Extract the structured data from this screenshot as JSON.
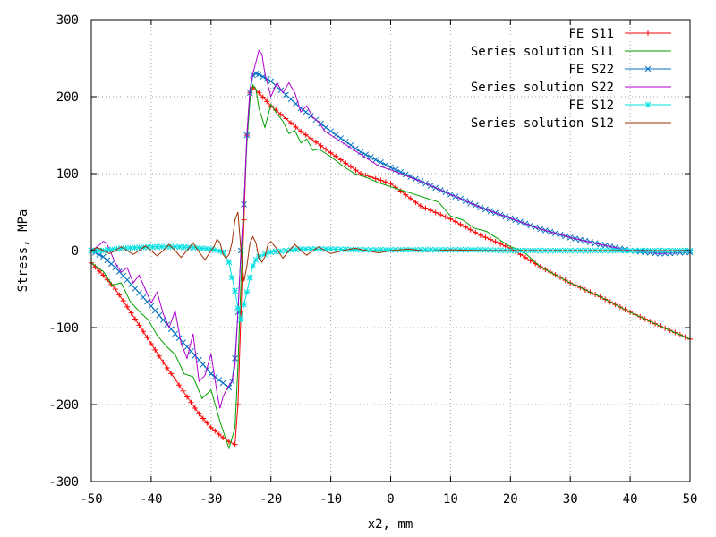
{
  "chart_data": {
    "type": "line",
    "title": "",
    "xlabel": "x2, mm",
    "ylabel": "Stress, MPa",
    "xlim": [
      -50,
      50
    ],
    "ylim": [
      -300,
      300
    ],
    "xticks": [
      -50,
      -40,
      -30,
      -20,
      -10,
      0,
      10,
      20,
      30,
      40,
      50
    ],
    "yticks": [
      -300,
      -200,
      -100,
      0,
      100,
      200,
      300
    ],
    "grid": true,
    "legend_position": "top-right",
    "series": [
      {
        "name": "FE S11",
        "color": "#ff0000",
        "marker": "plus",
        "x": [
          -50,
          -48,
          -46,
          -44,
          -42,
          -40,
          -38,
          -36,
          -34,
          -32,
          -30,
          -28,
          -27,
          -26,
          -25.5,
          -25,
          -24.5,
          -24,
          -23.5,
          -23,
          -22,
          -20,
          -15,
          -10,
          -5,
          0,
          5,
          10,
          15,
          20,
          25,
          30,
          35,
          40,
          45,
          50
        ],
        "y": [
          -16,
          -32,
          -50,
          -73,
          -97,
          -121,
          -145,
          -167,
          -190,
          -212,
          -230,
          -243,
          -248,
          -252,
          -200,
          -80,
          40,
          150,
          205,
          212,
          205,
          188,
          155,
          127,
          100,
          87,
          58,
          41,
          20,
          3,
          -21,
          -42,
          -60,
          -80,
          -98,
          -115
        ]
      },
      {
        "name": "Series solution S11",
        "color": "#00a000",
        "marker": "none",
        "x": [
          -50,
          -48,
          -46.5,
          -45,
          -43.5,
          -42,
          -40.5,
          -39,
          -37.5,
          -36,
          -34.5,
          -33,
          -31.5,
          -30,
          -28.5,
          -27,
          -26,
          -25.5,
          -25,
          -24.5,
          -24,
          -23.5,
          -23,
          -22.5,
          -22,
          -21,
          -20,
          -19,
          -18,
          -17,
          -16,
          -15,
          -14,
          -13,
          -12,
          -10,
          -8,
          -6,
          -4,
          -2,
          0,
          2,
          4,
          6,
          8,
          10,
          12,
          14,
          16,
          18,
          20,
          22,
          25,
          30,
          35,
          40,
          45,
          50
        ],
        "y": [
          -16,
          -27,
          -45,
          -42,
          -66,
          -79,
          -90,
          -110,
          -124,
          -135,
          -160,
          -164,
          -192,
          -181,
          -222,
          -257,
          -230,
          -150,
          -40,
          60,
          140,
          195,
          215,
          210,
          185,
          160,
          190,
          178,
          168,
          152,
          156,
          140,
          145,
          130,
          132,
          122,
          110,
          100,
          95,
          88,
          83,
          78,
          73,
          68,
          63,
          45,
          40,
          29,
          25,
          15,
          5,
          0,
          -21,
          -42,
          -60,
          -80,
          -98,
          -115
        ]
      },
      {
        "name": "FE S22",
        "color": "#0070c0",
        "marker": "cross",
        "x": [
          -50,
          -48,
          -46,
          -44,
          -42,
          -40,
          -38,
          -36,
          -34,
          -32,
          -30,
          -28,
          -27,
          -26.5,
          -26,
          -25.5,
          -25,
          -24.5,
          -24,
          -23.5,
          -23,
          -22.5,
          -22,
          -20,
          -15,
          -10,
          -5,
          0,
          5,
          10,
          15,
          20,
          25,
          30,
          35,
          40,
          45,
          50
        ],
        "y": [
          0,
          -8,
          -22,
          -38,
          -55,
          -72,
          -90,
          -108,
          -125,
          -142,
          -160,
          -172,
          -178,
          -170,
          -140,
          -80,
          0,
          60,
          150,
          205,
          228,
          230,
          229,
          220,
          185,
          155,
          128,
          108,
          90,
          73,
          56,
          42,
          28,
          17,
          8,
          0,
          -4,
          -2
        ]
      },
      {
        "name": "Series solution S22",
        "color": "#b000d0",
        "marker": "none",
        "x": [
          -50,
          -49,
          -48,
          -47.5,
          -47,
          -46,
          -45,
          -44,
          -43,
          -42,
          -41,
          -40,
          -39,
          -38,
          -37,
          -36,
          -35,
          -34,
          -33,
          -32,
          -31,
          -30,
          -29,
          -28.5,
          -28,
          -27.5,
          -27,
          -26.5,
          -26,
          -25.5,
          -25,
          -24.5,
          -24,
          -23.5,
          -23,
          -22.5,
          -22,
          -21.5,
          -21,
          -20,
          -19,
          -18,
          -17,
          -16,
          -15,
          -14,
          -13,
          -12,
          -11,
          -10,
          -8,
          -6,
          -4,
          -2,
          0,
          5,
          10,
          15,
          20,
          25,
          30,
          35,
          40,
          45,
          50
        ],
        "y": [
          0,
          5,
          12,
          10,
          2,
          -16,
          -28,
          -22,
          -42,
          -32,
          -50,
          -68,
          -54,
          -82,
          -100,
          -78,
          -120,
          -140,
          -108,
          -170,
          -162,
          -134,
          -185,
          -205,
          -190,
          -182,
          -175,
          -170,
          -150,
          -80,
          0,
          60,
          150,
          210,
          230,
          245,
          260,
          255,
          230,
          200,
          218,
          205,
          218,
          205,
          180,
          188,
          173,
          167,
          155,
          150,
          140,
          130,
          120,
          110,
          105,
          90,
          73,
          56,
          42,
          28,
          17,
          8,
          0,
          -4,
          -2
        ]
      },
      {
        "name": "FE S12",
        "color": "#00e0e0",
        "marker": "star",
        "x": [
          -50,
          -48,
          -45,
          -42,
          -39,
          -36,
          -33,
          -30,
          -28,
          -27,
          -26.5,
          -26,
          -25.5,
          -25,
          -24.5,
          -24,
          -23.5,
          -23,
          -22.5,
          -22,
          -21,
          -20,
          -15,
          -10,
          -5,
          0,
          5,
          10,
          15,
          20,
          25,
          30,
          35,
          40,
          45,
          50
        ],
        "y": [
          0,
          0,
          3,
          4,
          5,
          5,
          4,
          2,
          -2,
          -15,
          -35,
          -52,
          -75,
          -90,
          -70,
          -54,
          -35,
          -20,
          -12,
          -8,
          -5,
          -2,
          2,
          2,
          1,
          1,
          1,
          1,
          1,
          0,
          0,
          0,
          0,
          0,
          0,
          0
        ]
      },
      {
        "name": "Series solution S12",
        "color": "#a03000",
        "marker": "none",
        "x": [
          -50,
          -49,
          -48,
          -47,
          -46,
          -45,
          -44,
          -43,
          -42,
          -41,
          -40,
          -39,
          -38,
          -37,
          -36,
          -35,
          -34,
          -33,
          -32,
          -31,
          -30,
          -29.5,
          -29,
          -28.5,
          -28,
          -27.5,
          -27,
          -26.5,
          -26,
          -25.5,
          -25,
          -24.5,
          -24,
          -23.5,
          -23,
          -22.5,
          -22,
          -21.5,
          -21,
          -20.5,
          -20,
          -19,
          -18,
          -17,
          -16,
          -15,
          -14,
          -13,
          -12,
          -11,
          -10,
          -8,
          -6,
          -4,
          -2,
          0,
          3,
          6,
          10,
          15,
          20,
          30,
          40,
          50
        ],
        "y": [
          0,
          4,
          0,
          -4,
          0,
          5,
          0,
          -5,
          0,
          6,
          0,
          -7,
          0,
          8,
          0,
          -9,
          0,
          10,
          -2,
          -12,
          0,
          5,
          15,
          10,
          -5,
          -10,
          -5,
          10,
          40,
          50,
          0,
          -40,
          -20,
          10,
          18,
          10,
          -10,
          -15,
          -8,
          8,
          12,
          2,
          -10,
          0,
          8,
          0,
          -6,
          0,
          5,
          0,
          -4,
          0,
          3,
          0,
          -3,
          0,
          2,
          -1,
          1,
          0,
          0,
          0,
          0,
          0
        ]
      }
    ]
  }
}
